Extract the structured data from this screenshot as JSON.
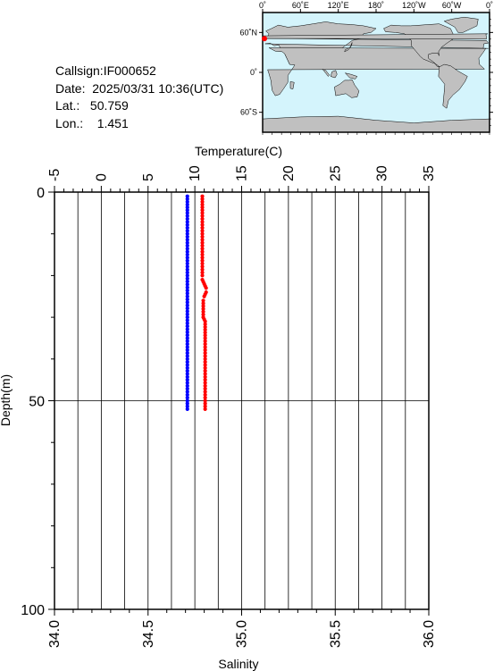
{
  "info": {
    "callsign": "Callsign:IF000652",
    "date": "Date:  2025/03/31 10:36(UTC)",
    "lat": "Lat.:   50.759",
    "lon": "Lon.:    1.451"
  },
  "map": {
    "lon_labels": [
      "0˚",
      "60˚E",
      "120˚E",
      "180˚",
      "120˚W",
      "60˚W",
      "0˚"
    ],
    "lat_labels": [
      "60˚N",
      "0˚",
      "60˚S"
    ],
    "ocean_color": "#d4f4fc",
    "land_color": "#c0c0c0",
    "marker_color": "#ff0000",
    "marker": {
      "lon": 1.451,
      "lat": 50.759
    }
  },
  "chart_data": {
    "type": "line",
    "title": "",
    "top_axis": {
      "label": "Temperature(C)",
      "range": [
        -5,
        35
      ],
      "ticks": [
        "-5",
        "0",
        "5",
        "10",
        "15",
        "20",
        "25",
        "30",
        "35"
      ]
    },
    "bottom_axis": {
      "label": "Salinity",
      "range": [
        34.0,
        36.0
      ],
      "ticks": [
        "34.0",
        "34.5",
        "35.0",
        "35.5",
        "36.0"
      ]
    },
    "y_axis": {
      "label": "Depth(m)",
      "range": [
        0,
        100
      ],
      "inverted": true,
      "ticks": [
        "0",
        "50",
        "100"
      ]
    },
    "grid": true,
    "series": [
      {
        "axis": "temperature",
        "color": "#ff0000",
        "points": [
          [
            10.8,
            1
          ],
          [
            10.8,
            5
          ],
          [
            10.8,
            10
          ],
          [
            10.8,
            15
          ],
          [
            10.8,
            20
          ],
          [
            10.8,
            21
          ],
          [
            11.0,
            22
          ],
          [
            11.2,
            23
          ],
          [
            11.2,
            24
          ],
          [
            11.0,
            25
          ],
          [
            10.9,
            26
          ],
          [
            10.9,
            28
          ],
          [
            10.9,
            30
          ],
          [
            11.1,
            31
          ],
          [
            11.1,
            35
          ],
          [
            11.1,
            40
          ],
          [
            11.1,
            45
          ],
          [
            11.1,
            50
          ],
          [
            11.1,
            52
          ]
        ]
      },
      {
        "axis": "salinity",
        "color": "#0000ff",
        "points": [
          [
            34.71,
            1
          ],
          [
            34.71,
            5
          ],
          [
            34.71,
            10
          ],
          [
            34.71,
            15
          ],
          [
            34.71,
            20
          ],
          [
            34.71,
            25
          ],
          [
            34.71,
            30
          ],
          [
            34.71,
            35
          ],
          [
            34.71,
            40
          ],
          [
            34.71,
            45
          ],
          [
            34.71,
            50
          ],
          [
            34.71,
            52
          ]
        ]
      }
    ]
  }
}
